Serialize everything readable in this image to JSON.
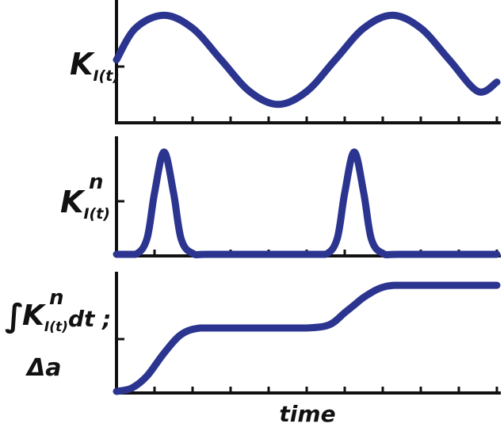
{
  "chart_data": [
    {
      "type": "line",
      "ylabel": "K_I(t)",
      "xlabel": "",
      "xlim": [
        0,
        10
      ],
      "ylim": [
        -1.2,
        1.2
      ],
      "grid": false,
      "x": [
        0,
        0.5,
        1.25,
        2,
        2.75,
        3.5,
        4.25,
        5,
        5.75,
        6.5,
        7.25,
        8,
        8.75,
        9.5,
        10
      ],
      "series": [
        {
          "color": "#2b3590",
          "values": [
            0.0,
            0.71,
            1.0,
            0.71,
            0.0,
            -0.71,
            -1.0,
            -0.71,
            0.0,
            0.71,
            1.0,
            0.71,
            0.0,
            -0.71,
            -0.5
          ]
        }
      ]
    },
    {
      "type": "line",
      "ylabel": "K_I(t)^n",
      "xlabel": "",
      "xlim": [
        0,
        10
      ],
      "ylim": [
        0,
        1.1
      ],
      "grid": false,
      "x": [
        0,
        0.5,
        0.8,
        1.0,
        1.25,
        1.5,
        1.7,
        2.0,
        2.5,
        5.0,
        5.5,
        5.8,
        6.0,
        6.25,
        6.5,
        6.7,
        7.0,
        7.5,
        10
      ],
      "series": [
        {
          "color": "#2b3590",
          "values": [
            0.0,
            0.0,
            0.15,
            0.6,
            1.0,
            0.6,
            0.15,
            0.01,
            0.0,
            0.0,
            0.0,
            0.15,
            0.6,
            1.0,
            0.6,
            0.15,
            0.01,
            0.0,
            0.0
          ]
        }
      ]
    },
    {
      "type": "line",
      "ylabel": "∫K_I(t)^n dt ; Δa",
      "xlabel": "time",
      "xlim": [
        0,
        10
      ],
      "ylim": [
        0,
        1.0
      ],
      "grid": false,
      "x": [
        0,
        0.4,
        0.8,
        1.25,
        1.7,
        2.2,
        3.0,
        4.0,
        5.0,
        5.6,
        6.0,
        6.25,
        6.5,
        6.9,
        7.3,
        8.0,
        10
      ],
      "series": [
        {
          "color": "#2b3590",
          "values": [
            0.0,
            0.03,
            0.14,
            0.35,
            0.52,
            0.58,
            0.58,
            0.58,
            0.58,
            0.61,
            0.72,
            0.79,
            0.86,
            0.94,
            0.97,
            0.97,
            0.97
          ]
        }
      ]
    }
  ],
  "labels": {
    "p1_main": "K",
    "p1_sub": "I(t)",
    "p2_main": "K",
    "p2_sub": "I(t)",
    "p2_sup": "n",
    "p3_int": "∫",
    "p3_main": "K",
    "p3_sub": "I(t)",
    "p3_sup": "n",
    "p3_dt": "dt ;",
    "p3_delta": "Δa",
    "xlabel": "time"
  }
}
